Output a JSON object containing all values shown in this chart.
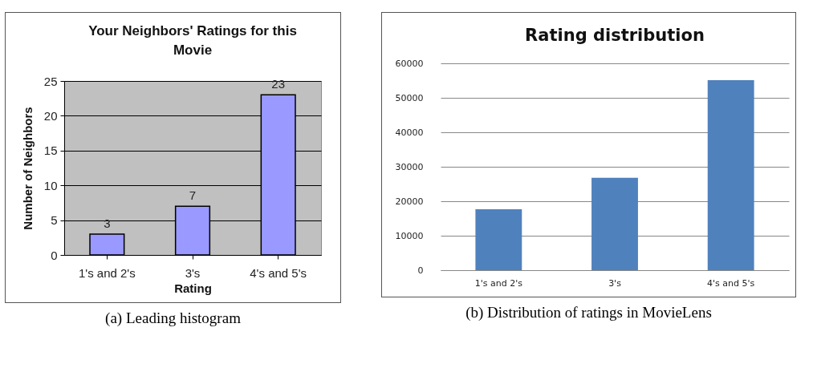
{
  "chart_data": [
    {
      "type": "bar",
      "title": "Your Neighbors' Ratings for this Movie",
      "xlabel": "Rating",
      "ylabel": "Number of Neighbors",
      "categories": [
        "1's and 2's",
        "3's",
        "4's and 5's"
      ],
      "values": [
        3,
        7,
        23
      ],
      "color": "#9999ff",
      "ylim": [
        0,
        25
      ],
      "yticks": [
        0,
        5,
        10,
        15,
        20,
        25
      ],
      "grid": "y",
      "data_labels": true,
      "annotations": [
        "(a) Leading histogram"
      ]
    },
    {
      "type": "bar",
      "title": "Rating distribution",
      "categories": [
        "1's and 2's",
        "3's",
        "4's and 5's"
      ],
      "values": [
        17700,
        26800,
        55100
      ],
      "color": "#4f81bd",
      "ylim": [
        0,
        60000
      ],
      "yticks": [
        0,
        10000,
        20000,
        30000,
        40000,
        50000,
        60000
      ],
      "grid": "y",
      "annotations": [
        "(b) Distribution of ratings in MovieLens"
      ]
    }
  ]
}
